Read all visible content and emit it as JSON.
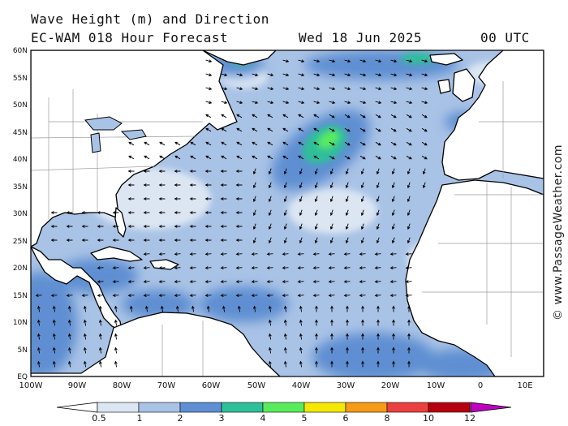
{
  "header": {
    "title_line1": "Wave Height (m) and Direction",
    "title_line2": "EC-WAM 018 Hour Forecast",
    "date": "Wed 18 Jun 2025",
    "time": "00 UTC"
  },
  "watermark": "© www.PassageWeather.com",
  "axes": {
    "lat_labels": [
      "60N",
      "55N",
      "50N",
      "45N",
      "40N",
      "35N",
      "30N",
      "25N",
      "20N",
      "15N",
      "10N",
      "5N",
      "EQ"
    ],
    "lon_labels": [
      "100W",
      "90W",
      "80W",
      "70W",
      "60W",
      "50W",
      "40W",
      "30W",
      "20W",
      "10W",
      "0",
      "10E"
    ]
  },
  "colorbar": {
    "labels": [
      "0.5",
      "1",
      "2",
      "3",
      "4",
      "5",
      "6",
      "8",
      "10",
      "12"
    ],
    "colors": [
      "#dce6f3",
      "#a9c3e6",
      "#5f8fd2",
      "#2fbf99",
      "#58ec5c",
      "#f4e800",
      "#f59b18",
      "#eb4040",
      "#b60010",
      "#c000c0"
    ]
  },
  "colors": {
    "land": "#ffffff",
    "coast": "#000000",
    "arrow": "#000000"
  }
}
